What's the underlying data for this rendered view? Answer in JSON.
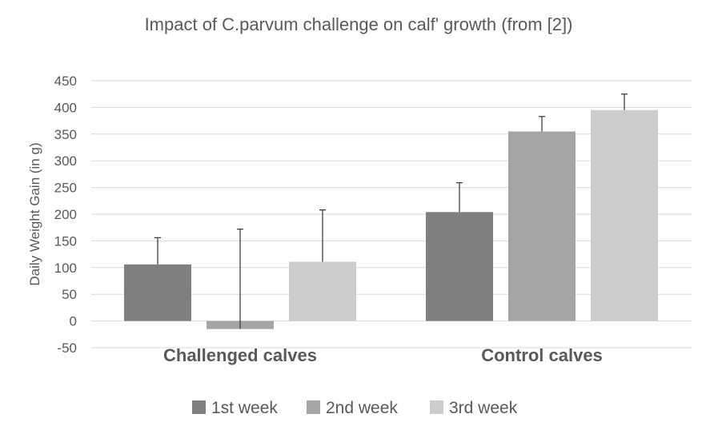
{
  "chart_data": {
    "type": "bar",
    "title": "Impact of C.parvum challenge on calf' growth (from [2])",
    "ylabel": "Daily Weight Gain (in g)",
    "xlabel": "",
    "categories": [
      "Challenged calves",
      "Control calves"
    ],
    "series": [
      {
        "name": "1st week",
        "values": [
          106,
          204
        ],
        "error": [
          50,
          55
        ],
        "color": "#7f7f7f"
      },
      {
        "name": "2nd week",
        "values": [
          -15,
          355
        ],
        "error": [
          187,
          28
        ],
        "color": "#a5a5a5"
      },
      {
        "name": "3rd week",
        "values": [
          111,
          395
        ],
        "error": [
          97,
          30
        ],
        "color": "#cccccc"
      }
    ],
    "ylim": [
      -50,
      450
    ],
    "yticks": [
      -50,
      0,
      50,
      100,
      150,
      200,
      250,
      300,
      350,
      400,
      450
    ],
    "grid": true,
    "legend_position": "bottom"
  }
}
